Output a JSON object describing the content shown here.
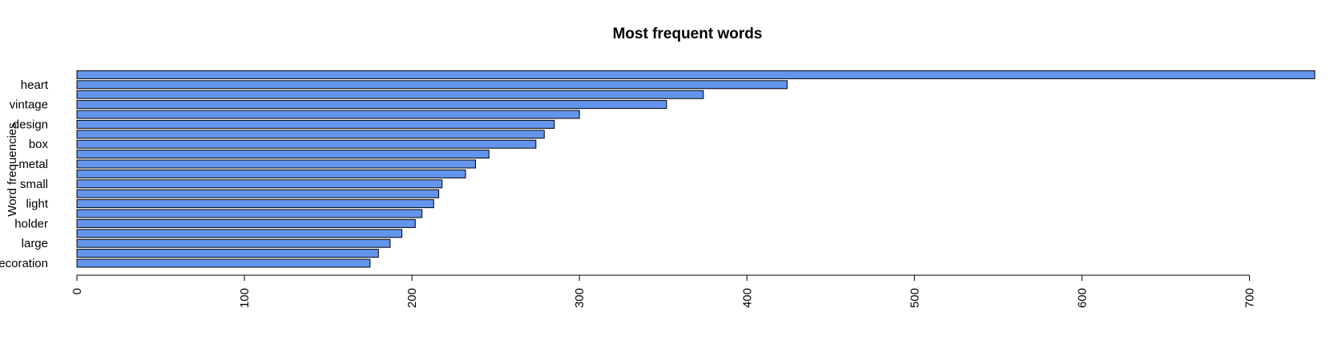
{
  "chart_data": {
    "type": "bar",
    "orientation": "horizontal",
    "title": "Most frequent words",
    "ylabel": "Word frequencies",
    "xlabel": "",
    "categories": [
      "decoration",
      "",
      "large",
      "",
      "holder",
      "",
      "light",
      "",
      "small",
      "",
      "metal",
      "",
      "box",
      "",
      "design",
      "",
      "vintage",
      "",
      "heart",
      ""
    ],
    "values": [
      175,
      180,
      187,
      194,
      202,
      206,
      213,
      216,
      218,
      232,
      238,
      246,
      274,
      279,
      285,
      300,
      352,
      374,
      424,
      739
    ],
    "xlim": [
      0,
      739
    ],
    "xticks": [
      0,
      100,
      200,
      300,
      400,
      500,
      600,
      700
    ],
    "bar_color": "#6495ED",
    "bar_border": "#000000",
    "grid": false
  }
}
